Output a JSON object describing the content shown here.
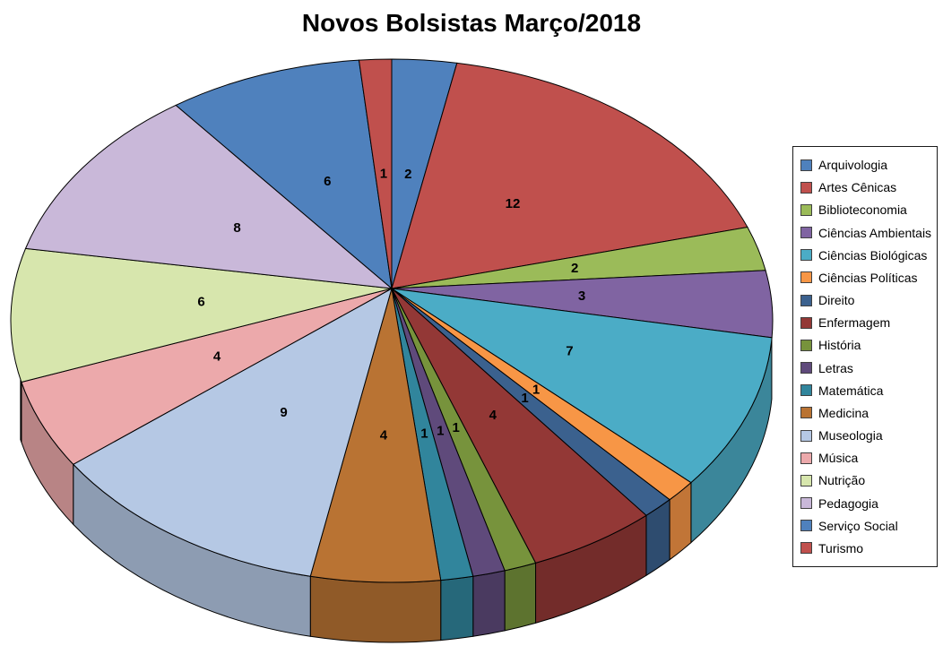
{
  "title": "Novos Bolsistas Março/2018",
  "chart_data": {
    "type": "pie",
    "style": "3d",
    "title": "Novos Bolsistas Março/2018",
    "legend_position": "right",
    "direction": "clockwise",
    "start_angle_deg": 0,
    "total": 73,
    "data_labels": "value",
    "categories": [
      "Arquivologia",
      "Artes Cênicas",
      "Biblioteconomia",
      "Ciências Ambientais",
      "Ciências Biológicas",
      "Ciências Políticas",
      "Direito",
      "Enfermagem",
      "História",
      "Letras",
      "Matemática",
      "Medicina",
      "Museologia",
      "Música",
      "Nutrição",
      "Pedagogia",
      "Serviço Social",
      "Turismo"
    ],
    "values": [
      2,
      12,
      2,
      3,
      7,
      1,
      1,
      4,
      1,
      1,
      1,
      4,
      9,
      4,
      6,
      8,
      6,
      1
    ],
    "colors": [
      "#4F81BD",
      "#C0504D",
      "#9BBB59",
      "#8064A2",
      "#4BACC6",
      "#F79646",
      "#3B618E",
      "#933836",
      "#77933C",
      "#5F4A7B",
      "#31859C",
      "#B97333",
      "#B5C8E4",
      "#ECA9AB",
      "#D7E6AD",
      "#C9B8D9",
      "#4F81BD",
      "#C0504D"
    ]
  }
}
